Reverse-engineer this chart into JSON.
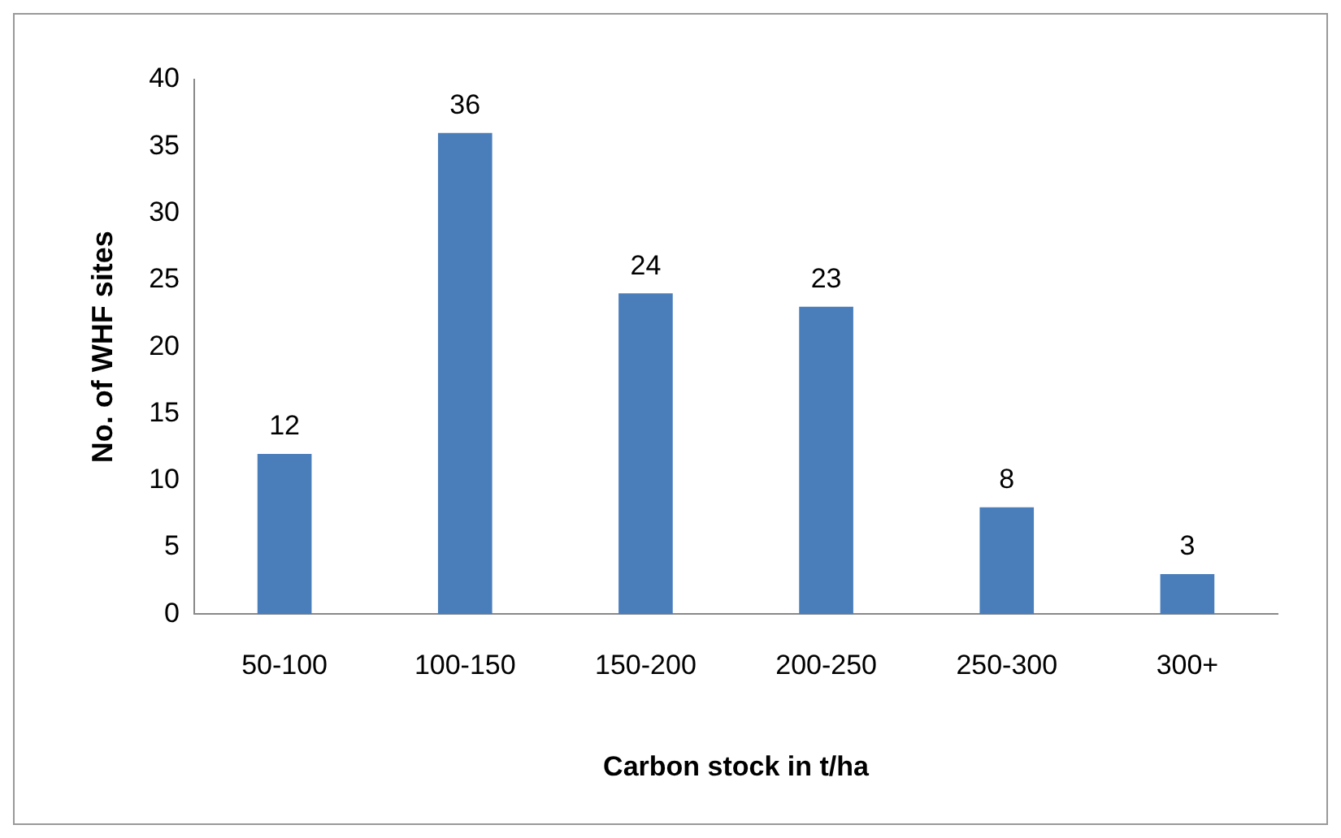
{
  "chart_data": {
    "type": "bar",
    "xlabel": "Carbon stock in t/ha",
    "ylabel": "No. of WHF sites",
    "categories": [
      "50-100",
      "100-150",
      "150-200",
      "200-250",
      "250-300",
      "300+"
    ],
    "values": [
      12,
      36,
      24,
      23,
      8,
      3
    ],
    "color": "#4a7ebb",
    "ylim": [
      0,
      40
    ],
    "yticks": [
      0,
      5,
      10,
      15,
      20,
      25,
      30,
      35,
      40
    ],
    "grid": false,
    "data_labels": true
  }
}
